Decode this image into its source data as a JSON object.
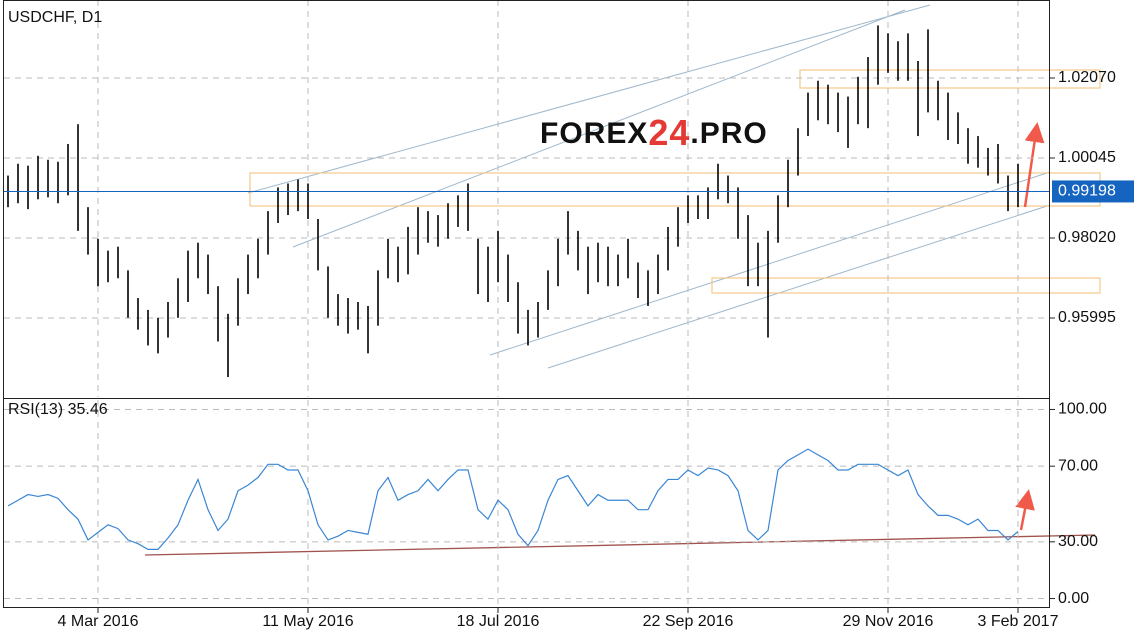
{
  "chart_data": [
    {
      "type": "hilo",
      "title": "USDCHF, D1",
      "watermark": [
        "FOREX",
        "24",
        ".PRO"
      ],
      "categories": [
        null,
        null,
        null,
        null,
        null,
        null,
        null,
        null,
        null,
        "4 Mar 2016",
        null,
        null,
        null,
        null,
        null,
        null,
        null,
        null,
        null,
        null,
        null,
        null,
        null,
        null,
        null,
        null,
        null,
        null,
        null,
        null,
        "11 May 2016",
        null,
        null,
        null,
        null,
        null,
        null,
        null,
        null,
        null,
        null,
        null,
        null,
        null,
        null,
        null,
        null,
        null,
        null,
        "18 Jul 2016",
        null,
        null,
        null,
        null,
        null,
        null,
        null,
        null,
        null,
        null,
        null,
        null,
        null,
        null,
        null,
        null,
        null,
        null,
        "22 Sep 2016",
        null,
        null,
        null,
        null,
        null,
        null,
        null,
        null,
        null,
        null,
        null,
        null,
        null,
        null,
        null,
        null,
        null,
        null,
        null,
        "29 Nov 2016",
        null,
        null,
        null,
        null,
        null,
        null,
        null,
        null,
        null,
        null,
        null,
        null,
        "3 Feb 2017"
      ],
      "high": [
        0.996,
        0.999,
        0.9985,
        1.001,
        1.0,
        0.9995,
        1.004,
        1.009,
        0.988,
        0.98,
        0.977,
        0.978,
        0.972,
        0.965,
        0.962,
        0.96,
        0.964,
        0.97,
        0.977,
        0.979,
        0.976,
        0.968,
        0.961,
        0.97,
        0.976,
        0.98,
        0.987,
        0.993,
        0.994,
        0.995,
        0.994,
        0.985,
        0.973,
        0.966,
        0.965,
        0.964,
        0.963,
        0.972,
        0.98,
        0.978,
        0.983,
        0.988,
        0.987,
        0.986,
        0.989,
        0.991,
        0.994,
        0.98,
        0.978,
        0.982,
        0.976,
        0.969,
        0.962,
        0.964,
        0.972,
        0.98,
        0.987,
        0.982,
        0.978,
        0.979,
        0.978,
        0.976,
        0.98,
        0.974,
        0.972,
        0.976,
        0.983,
        0.988,
        0.991,
        0.991,
        0.993,
        0.999,
        0.996,
        0.993,
        0.986,
        0.979,
        0.982,
        0.991,
        1.0,
        1.008,
        1.017,
        1.02,
        1.019,
        1.017,
        1.016,
        1.021,
        1.026,
        1.034,
        1.032,
        1.03,
        1.032,
        1.025,
        1.033,
        1.02,
        1.017,
        1.012,
        1.008,
        1.006,
        1.003,
        1.004,
        0.996,
        0.999
      ],
      "low": [
        0.988,
        0.989,
        0.9875,
        0.99,
        0.9905,
        0.989,
        0.991,
        0.982,
        0.976,
        0.968,
        0.969,
        0.97,
        0.96,
        0.957,
        0.953,
        0.951,
        0.955,
        0.96,
        0.964,
        0.97,
        0.966,
        0.954,
        0.945,
        0.958,
        0.966,
        0.97,
        0.976,
        0.984,
        0.986,
        0.987,
        0.985,
        0.972,
        0.96,
        0.958,
        0.956,
        0.957,
        0.951,
        0.958,
        0.97,
        0.969,
        0.971,
        0.976,
        0.979,
        0.978,
        0.98,
        0.983,
        0.982,
        0.966,
        0.964,
        0.969,
        0.964,
        0.956,
        0.953,
        0.955,
        0.962,
        0.968,
        0.976,
        0.972,
        0.966,
        0.969,
        0.968,
        0.968,
        0.97,
        0.965,
        0.963,
        0.966,
        0.972,
        0.978,
        0.984,
        0.985,
        0.985,
        0.99,
        0.989,
        0.98,
        0.968,
        0.968,
        0.955,
        0.979,
        0.988,
        0.996,
        1.006,
        1.01,
        1.009,
        1.007,
        1.003,
        1.009,
        1.008,
        1.019,
        1.022,
        1.02,
        1.02,
        1.006,
        1.012,
        1.01,
        1.005,
        1.004,
        0.999,
        0.998,
        0.996,
        0.994,
        0.987,
        0.988
      ],
      "color": "#000000",
      "last_price": 0.99198,
      "last_color": "#1565c0",
      "ylim": [
        0.93995,
        1.04044
      ],
      "yticks": [
        {
          "value": 1.0207,
          "label": "1.02070"
        },
        1.00045,
        {
          "value": 0.9802,
          "label": "0.98020"
        },
        0.95995
      ],
      "grid": true
    },
    {
      "type": "line",
      "title": "RSI(13) 35.46",
      "color": "#3a86d4",
      "values": [
        49,
        52,
        55,
        54,
        55,
        53,
        47,
        42,
        31,
        35,
        39,
        37,
        31,
        29,
        26,
        26,
        32,
        39,
        52,
        63,
        47,
        36,
        42,
        57,
        60,
        64,
        71,
        71,
        68,
        68,
        57,
        39,
        31,
        33,
        36,
        35,
        34,
        57,
        64,
        52,
        55,
        57,
        63,
        57,
        63,
        68,
        68,
        47,
        42,
        52,
        47,
        34,
        28,
        36,
        52,
        63,
        65,
        57,
        49,
        55,
        52,
        52,
        52,
        47,
        47,
        57,
        63,
        63,
        68,
        65,
        69,
        68,
        65,
        57,
        36,
        31,
        36,
        68,
        73,
        76,
        79,
        76,
        73,
        68,
        68,
        71,
        71,
        71,
        68,
        65,
        68,
        55,
        49,
        44,
        44,
        42,
        39,
        42,
        36,
        36,
        31,
        35.46
      ],
      "ylim": [
        -5,
        105
      ],
      "yticks": [
        {
          "value": 100,
          "label": "100.00"
        },
        {
          "value": 70,
          "label": "70.00"
        },
        {
          "value": 30,
          "label": "30.00"
        },
        {
          "value": 0,
          "label": "0.00"
        }
      ],
      "grid": true
    }
  ]
}
